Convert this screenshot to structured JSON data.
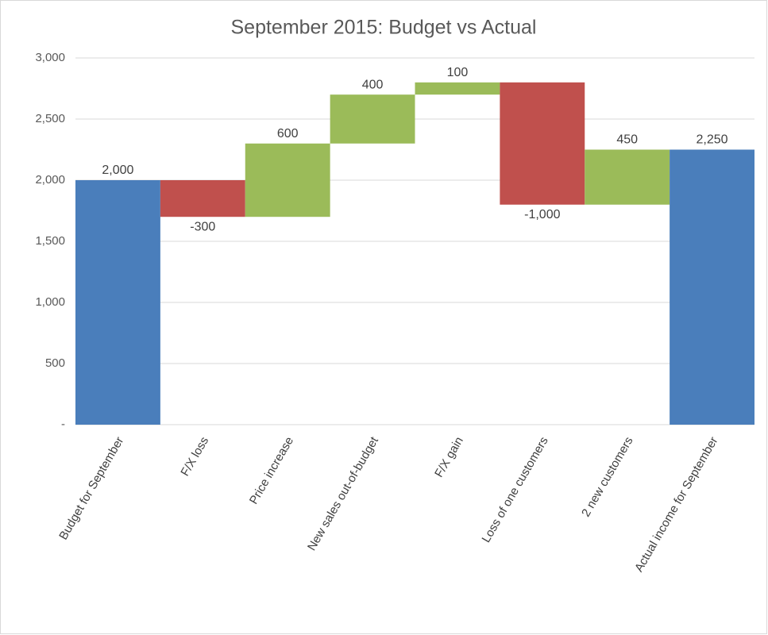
{
  "chart_data": {
    "type": "waterfall",
    "title": "September 2015: Budget vs Actual",
    "categories": [
      "Budget for September",
      "F/X loss",
      "Price increase",
      "New sales out-of-budget",
      "F/X gain",
      "Loss of one customers",
      "2 new customers",
      "Actual income for September"
    ],
    "values": [
      2000,
      -300,
      600,
      400,
      100,
      -1000,
      450,
      2250
    ],
    "value_labels": [
      "2,000",
      "-300",
      "600",
      "400",
      "100",
      "-1,000",
      "450",
      "2,250"
    ],
    "is_total": [
      true,
      false,
      false,
      false,
      false,
      false,
      false,
      true
    ],
    "colors": [
      "#4a7ebb",
      "#c0504d",
      "#9bbb59",
      "#9bbb59",
      "#9bbb59",
      "#c0504d",
      "#9bbb59",
      "#4a7ebb"
    ],
    "ylim": [
      0,
      3000
    ],
    "yticks": [
      {
        "value": 0,
        "label": "-"
      },
      500,
      {
        "value": 1000,
        "label": "1,000"
      },
      {
        "value": 1500,
        "label": "1,500"
      },
      {
        "value": 2000,
        "label": "2,000"
      },
      {
        "value": 2500,
        "label": "2,500"
      },
      {
        "value": 3000,
        "label": "3,000"
      }
    ],
    "grid": true
  }
}
